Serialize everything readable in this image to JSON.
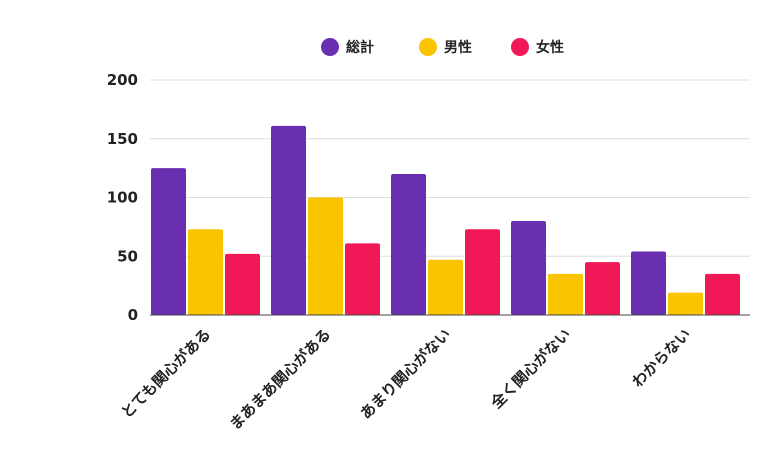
{
  "chart_data": {
    "type": "bar",
    "categories": [
      "とても関心がある",
      "まあまあ関心がある",
      "あまり関心がない",
      "全く関心がない",
      "わからない"
    ],
    "series": [
      {
        "name": "総計",
        "values": [
          125,
          161,
          120,
          80,
          54
        ],
        "color": "#6a2fb0"
      },
      {
        "name": "男性",
        "values": [
          73,
          100,
          47,
          35,
          19
        ],
        "color": "#fbc400"
      },
      {
        "name": "女性",
        "values": [
          52,
          61,
          73,
          45,
          35
        ],
        "color": "#f01856"
      }
    ],
    "ylim": [
      0,
      200
    ],
    "yticks": [
      0,
      50,
      100,
      150,
      200
    ],
    "grid": true,
    "legend": "top-center",
    "title": "",
    "xlabel": "",
    "ylabel": ""
  }
}
